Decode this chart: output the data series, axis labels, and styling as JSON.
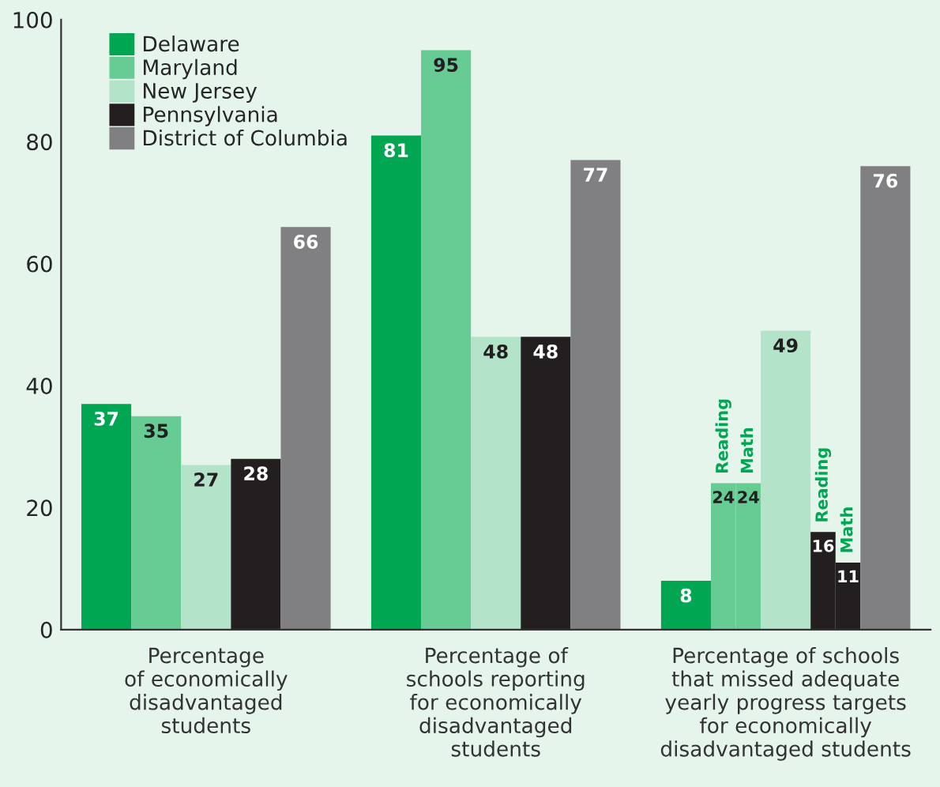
{
  "chart_data": {
    "type": "bar",
    "categories": [
      "Percentage\nof economically\ndisadvantaged\nstudents",
      "Percentage of\nschools reporting\nfor economically\ndisadvantaged\nstudents",
      "Percentage of schools\nthat missed adequate\nyearly progress targets\nfor economically\ndisadvantaged students"
    ],
    "series": [
      {
        "name": "Delaware",
        "color": "#00a651",
        "values": [
          37,
          81,
          8
        ]
      },
      {
        "name": "Maryland",
        "color": "#66cc94",
        "values": [
          35,
          95,
          24
        ]
      },
      {
        "color": "#66cc94",
        "values": [
          null,
          null,
          24
        ]
      },
      {
        "name": "New Jersey",
        "color": "#b3e4c9",
        "values": [
          27,
          48,
          49
        ]
      },
      {
        "name": "Pennsylvania",
        "color": "#231f20",
        "values": [
          28,
          48,
          16
        ]
      },
      {
        "color": "#231f20",
        "values": [
          null,
          null,
          11
        ]
      },
      {
        "name": "District of Columbia",
        "color": "#808083",
        "values": [
          66,
          77,
          76
        ]
      }
    ],
    "annotations": [
      "Reading",
      "Math",
      "Reading",
      "Math"
    ],
    "ylim": [
      0,
      100
    ],
    "yticks": [
      0,
      20,
      40,
      60,
      80,
      100
    ],
    "data_labels": true,
    "grid": false,
    "legend": "top left"
  }
}
